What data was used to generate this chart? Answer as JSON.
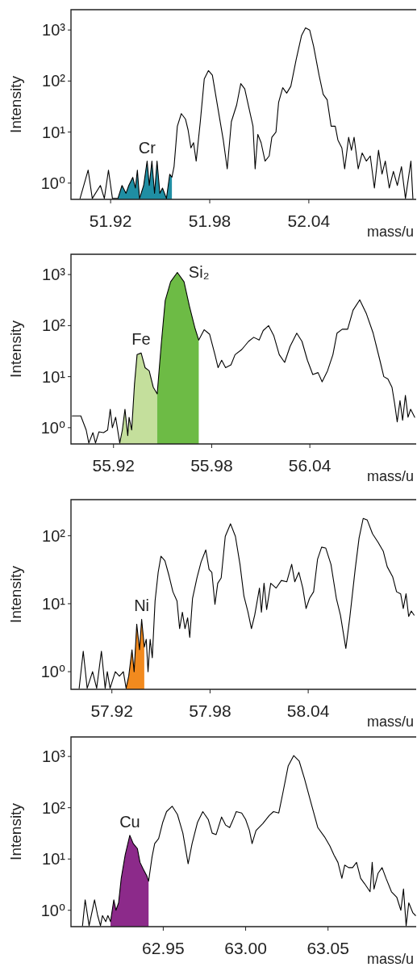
{
  "chart_data": [
    {
      "type": "line",
      "xlabel": "mass/u",
      "ylabel": "Intensity",
      "log": true,
      "xlim": [
        51.896,
        52.105
      ],
      "ylim": [
        0.48,
        2500
      ],
      "xticks": [
        51.92,
        51.98,
        52.04
      ],
      "yticks": [
        {
          "value": 1,
          "label": "10⁰"
        },
        {
          "value": 10,
          "label": "10¹"
        },
        {
          "value": 100,
          "label": "10²"
        },
        {
          "value": 1000,
          "label": "10³"
        }
      ],
      "series": [
        {
          "type": "area",
          "name": "Cr",
          "color": "#1f8ea3",
          "x": [
            51.9244,
            51.9269,
            51.9293,
            51.931,
            51.9334,
            51.935,
            51.9362,
            51.9375,
            51.94,
            51.9421,
            51.9434,
            51.945,
            51.9466,
            51.9481,
            51.9498,
            51.9514,
            51.9538,
            51.9558,
            51.9571
          ],
          "values": [
            0.5,
            0.9,
            0.63,
            0.9,
            1.3,
            0.8,
            1.8,
            0.5,
            0.9,
            2.7,
            0.9,
            2.7,
            0.63,
            2.7,
            0.63,
            0.8,
            0.5,
            1.5,
            1.3
          ]
        },
        {
          "type": "line",
          "color": "#000000",
          "x": [
            51.9015,
            51.9064,
            51.9089,
            51.9138,
            51.9162,
            51.9187,
            51.9211,
            51.9244,
            51.9269,
            51.9293,
            51.931,
            51.9334,
            51.935,
            51.9362,
            51.9375,
            51.94,
            51.9421,
            51.9434,
            51.945,
            51.9466,
            51.9481,
            51.9498,
            51.9514,
            51.9538,
            51.9558,
            51.9571,
            51.9584,
            51.9604,
            51.9628,
            51.9653,
            51.9669,
            51.9686,
            51.9702,
            51.9718,
            51.9743,
            51.9767,
            51.9792,
            51.9816,
            51.9849,
            51.9882,
            51.9906,
            51.9931,
            51.9963,
            51.9988,
            52.0012,
            52.0037,
            52.0062,
            52.0075,
            52.0091,
            52.0111,
            52.0135,
            52.016,
            52.0176,
            52.0201,
            52.0217,
            52.0242,
            52.0266,
            52.0291,
            52.0323,
            52.0356,
            52.038,
            52.0405,
            52.0429,
            52.0462,
            52.0487,
            52.0511,
            52.0535,
            52.056,
            52.0576,
            52.06,
            52.0617,
            52.0641,
            52.0658,
            52.0674,
            52.0699,
            52.0723,
            52.0748,
            52.0772,
            52.0797,
            52.0822,
            52.0843,
            52.0863,
            52.0887,
            52.0912,
            52.0936,
            52.0961,
            52.0985,
            52.1018,
            52.103
          ],
          "values": [
            0.5,
            1.8,
            0.5,
            0.9,
            0.5,
            1.8,
            0.5,
            0.5,
            0.9,
            0.63,
            0.9,
            1.3,
            0.8,
            1.8,
            0.5,
            0.9,
            2.7,
            0.9,
            2.7,
            0.63,
            2.7,
            0.63,
            0.8,
            0.5,
            1.5,
            1.3,
            2.1,
            13,
            23,
            18,
            11,
            4.9,
            6.2,
            2.7,
            16,
            110,
            160,
            130,
            30,
            7,
            1.9,
            16,
            34,
            89,
            70,
            30,
            13,
            1.9,
            9,
            6.2,
            2.7,
            3.4,
            7.9,
            10,
            38,
            74,
            58,
            79,
            260,
            780,
            1100,
            1000,
            480,
            130,
            55,
            43,
            13,
            13,
            7,
            4.9,
            1.9,
            7.9,
            4.4,
            7.9,
            1.9,
            3.9,
            2.7,
            3.4,
            0.8,
            4.4,
            1.5,
            2.7,
            0.8,
            1.7,
            0.9,
            2.1,
            0.5,
            2.7,
            0.5
          ]
        }
      ]
    },
    {
      "type": "line",
      "xlabel": "mass/u",
      "ylabel": "Intensity",
      "log": true,
      "xlim": [
        55.894,
        56.105
      ],
      "ylim": [
        0.48,
        2500
      ],
      "xticks": [
        55.92,
        55.98,
        56.04
      ],
      "yticks": [
        {
          "value": 1,
          "label": "10⁰"
        },
        {
          "value": 10,
          "label": "10¹"
        },
        {
          "value": 100,
          "label": "10²"
        },
        {
          "value": 1000,
          "label": "10³"
        }
      ],
      "series": [
        {
          "type": "area",
          "name": "Fe",
          "color": "#c4df9c",
          "x": [
            55.9238,
            55.9254,
            55.927,
            55.9287,
            55.9295,
            55.9311,
            55.9328,
            55.9344,
            55.9369,
            55.9393,
            55.9418,
            55.9443,
            55.9467
          ],
          "values": [
            0.5,
            0.9,
            2.3,
            0.7,
            1.6,
            0.9,
            7,
            27,
            29,
            15,
            13,
            6.2,
            4.6
          ]
        },
        {
          "type": "area",
          "name": "Si₂",
          "color": "#6dbb45",
          "x": [
            55.9467,
            55.9492,
            55.9516,
            55.9549,
            55.959,
            55.9631,
            55.9664,
            55.9697,
            55.9721
          ],
          "values": [
            4.6,
            44,
            310,
            720,
            1100,
            720,
            240,
            91,
            52
          ]
        },
        {
          "type": "line",
          "color": "#000000",
          "x": [
            55.8948,
            55.9,
            55.9033,
            55.9049,
            55.9074,
            55.909,
            55.9111,
            55.9139,
            55.9164,
            55.918,
            55.9193,
            55.9213,
            55.9238,
            55.9254,
            55.927,
            55.9287,
            55.9295,
            55.9311,
            55.9328,
            55.9344,
            55.9369,
            55.9393,
            55.9418,
            55.9443,
            55.9467,
            55.9492,
            55.9516,
            55.9549,
            55.959,
            55.9631,
            55.9664,
            55.9697,
            55.9721,
            55.9754,
            55.9787,
            55.982,
            55.9839,
            55.9861,
            55.9885,
            55.9918,
            55.9943,
            55.9984,
            56.0025,
            56.0057,
            56.009,
            56.0115,
            56.0148,
            56.018,
            56.0213,
            56.0246,
            56.0279,
            56.032,
            56.0352,
            56.0385,
            56.0418,
            56.045,
            56.0475,
            56.0508,
            56.0541,
            56.0566,
            56.0598,
            56.0631,
            56.0664,
            56.0705,
            56.0746,
            56.0787,
            56.0828,
            56.0852,
            56.0877,
            56.0902,
            56.0918,
            56.0934,
            56.0951,
            56.0967,
            56.0984,
            56.1,
            56.1016,
            56.1041
          ],
          "values": [
            1.7,
            1.7,
            0.9,
            0.5,
            0.8,
            0.5,
            0.83,
            0.8,
            0.9,
            2.3,
            1,
            1.6,
            0.5,
            0.9,
            2.3,
            0.7,
            1.6,
            0.9,
            7,
            27,
            29,
            15,
            13,
            6.2,
            4.6,
            44,
            310,
            720,
            1100,
            720,
            240,
            91,
            52,
            83,
            68,
            27,
            15,
            21,
            15,
            17,
            27,
            34,
            49,
            59,
            52,
            80,
            100,
            63,
            27,
            19,
            39,
            71,
            49,
            21,
            11,
            12,
            7.9,
            13,
            27,
            71,
            85,
            85,
            200,
            320,
            170,
            71,
            21,
            10,
            9,
            6.2,
            3,
            1.3,
            3.4,
            1.4,
            4.3,
            1.6,
            2.3,
            1.6
          ]
        }
      ]
    },
    {
      "type": "line",
      "xlabel": "mass/u",
      "ylabel": "Intensity",
      "log": true,
      "xlim": [
        57.895,
        58.106
      ],
      "ylim": [
        0.55,
        340
      ],
      "xticks": [
        57.92,
        57.98,
        58.04
      ],
      "yticks": [
        {
          "value": 1,
          "label": "10⁰"
        },
        {
          "value": 10,
          "label": "10¹"
        },
        {
          "value": 100,
          "label": "10²"
        }
      ],
      "series": [
        {
          "type": "area",
          "name": "Ni",
          "color": "#f28a1e",
          "x": [
            57.9287,
            57.9303,
            57.9323,
            57.9336,
            57.9352,
            57.9369,
            57.9382,
            57.9398
          ],
          "values": [
            0.57,
            0.86,
            2.1,
            1,
            5,
            2.1,
            5.9,
            2.3
          ]
        },
        {
          "type": "line",
          "color": "#000000",
          "x": [
            57.9,
            57.9025,
            57.9049,
            57.9082,
            57.9107,
            57.9136,
            57.9159,
            57.9172,
            57.9189,
            57.9221,
            57.9246,
            57.927,
            57.9287,
            57.9303,
            57.9323,
            57.9336,
            57.9352,
            57.9369,
            57.9382,
            57.9398,
            57.941,
            57.9421,
            57.9434,
            57.9447,
            57.9464,
            57.9483,
            57.95,
            57.9524,
            57.9549,
            57.9573,
            57.9598,
            57.9614,
            57.9631,
            57.9647,
            57.9663,
            57.9676,
            57.9693,
            57.972,
            57.9745,
            57.9774,
            57.9794,
            57.9811,
            57.983,
            57.9847,
            57.9868,
            57.9893,
            57.9925,
            57.9955,
            57.9983,
            58.0007,
            58.0032,
            58.0053,
            58.0073,
            58.0102,
            58.0114,
            58.013,
            58.0146,
            58.0171,
            58.0204,
            58.0236,
            58.0269,
            58.0299,
            58.0318,
            58.0343,
            58.0367,
            58.0387,
            58.0408,
            58.0433,
            58.0457,
            58.0482,
            58.0507,
            58.0539,
            58.0572,
            58.0597,
            58.063,
            58.0654,
            58.0687,
            58.0711,
            58.0736,
            58.0761,
            58.0793,
            58.0826,
            58.0859,
            58.0883,
            58.0916,
            58.094,
            58.0965,
            58.0981,
            58.0998,
            58.1014,
            58.103,
            58.1047
          ],
          "values": [
            0.57,
            2,
            0.57,
            1,
            0.57,
            2,
            0.57,
            1,
            0.57,
            1,
            0.86,
            1,
            0.57,
            0.86,
            2.1,
            1,
            5,
            2.1,
            5.9,
            2.3,
            3,
            1,
            3,
            1.6,
            11,
            29,
            50,
            43,
            26,
            15,
            11,
            4.3,
            7.5,
            4.3,
            6.2,
            3.2,
            12,
            24,
            41,
            62,
            32,
            29,
            9.8,
            20,
            24,
            98,
            150,
            98,
            38,
            13,
            7.5,
            4.3,
            6.8,
            17,
            7.5,
            20,
            8.2,
            20,
            17,
            22,
            21,
            38,
            21,
            29,
            17,
            8.5,
            12,
            15,
            45,
            68,
            66,
            38,
            12,
            6.8,
            2.2,
            6.2,
            32,
            93,
            180,
            170,
            107,
            81,
            59,
            35,
            25,
            15,
            14,
            8.5,
            14,
            6.5,
            7.8,
            6.8
          ]
        }
      ]
    },
    {
      "type": "line",
      "xlabel": "mass/u",
      "ylabel": "Intensity",
      "log": true,
      "xlim": [
        62.894,
        63.1035
      ],
      "ylim": [
        0.48,
        2400
      ],
      "xticks": [
        62.95,
        {
          "value": 63,
          "label": "63.00"
        },
        63.05
      ],
      "yticks": [
        {
          "value": 1,
          "label": "10⁰"
        },
        {
          "value": 10,
          "label": "10¹"
        },
        {
          "value": 100,
          "label": "10²"
        },
        {
          "value": 1000,
          "label": "10³"
        }
      ],
      "series": [
        {
          "type": "area",
          "name": "Cu",
          "color": "#8c2a8a",
          "x": [
            62.918,
            62.92,
            62.9213,
            62.9229,
            62.9245,
            62.9269,
            62.9297,
            62.9318,
            62.9343,
            62.9359,
            62.9378,
            62.94,
            62.9411
          ],
          "values": [
            0.6,
            1.6,
            1,
            1.4,
            4.2,
            12,
            29,
            20,
            16,
            8.6,
            6.4,
            4.7,
            3.7
          ]
        },
        {
          "type": "line",
          "color": "#000000",
          "x": [
            62.901,
            62.9026,
            62.905,
            62.9083,
            62.9102,
            62.9119,
            62.9131,
            62.9151,
            62.9164,
            62.918,
            62.92,
            62.9213,
            62.9229,
            62.9245,
            62.9269,
            62.9297,
            62.9318,
            62.9343,
            62.9359,
            62.9378,
            62.94,
            62.9411,
            62.9432,
            62.9448,
            62.9472,
            62.9497,
            62.952,
            62.9554,
            62.9586,
            62.9619,
            62.9651,
            62.9675,
            62.9708,
            62.974,
            62.9773,
            62.9797,
            62.9821,
            62.9854,
            62.9878,
            62.9903,
            62.9927,
            62.9943,
            62.9976,
            63.0,
            63.0023,
            63.0039,
            63.0063,
            63.0104,
            63.0144,
            63.0169,
            63.0201,
            63.0226,
            63.0258,
            63.0292,
            63.0325,
            63.0357,
            63.0398,
            63.0438,
            63.0479,
            63.0511,
            63.0536,
            63.056,
            63.0584,
            63.0601,
            63.0625,
            63.0649,
            63.0673,
            63.0698,
            63.0722,
            63.0755,
            63.0768,
            63.0779,
            63.0804,
            63.0828,
            63.0852,
            63.0885,
            63.0917,
            63.0942,
            63.0958,
            63.0974,
            63.099,
            63.1015,
            63.1031
          ],
          "values": [
            0.5,
            1.6,
            0.5,
            1.6,
            0.79,
            0.5,
            0.79,
            0.6,
            0.79,
            0.6,
            1.6,
            1,
            1.4,
            4.2,
            12,
            29,
            20,
            16,
            8.6,
            6.4,
            4.7,
            3.7,
            11,
            20,
            25,
            52,
            84,
            107,
            74,
            32,
            8.1,
            20,
            52,
            84,
            59,
            32,
            30,
            66,
            46,
            41,
            62,
            84,
            79,
            59,
            36,
            20,
            36,
            49,
            71,
            84,
            79,
            195,
            650,
            1040,
            810,
            370,
            120,
            41,
            27,
            18,
            12,
            8.6,
            4.2,
            7.6,
            6.8,
            6.8,
            8.6,
            4.2,
            3.3,
            2.3,
            8.6,
            2.6,
            5.3,
            6.8,
            4.2,
            2.3,
            1.8,
            1,
            2.6,
            0.5,
            1.4,
            0.89,
            0.79
          ]
        }
      ]
    }
  ]
}
